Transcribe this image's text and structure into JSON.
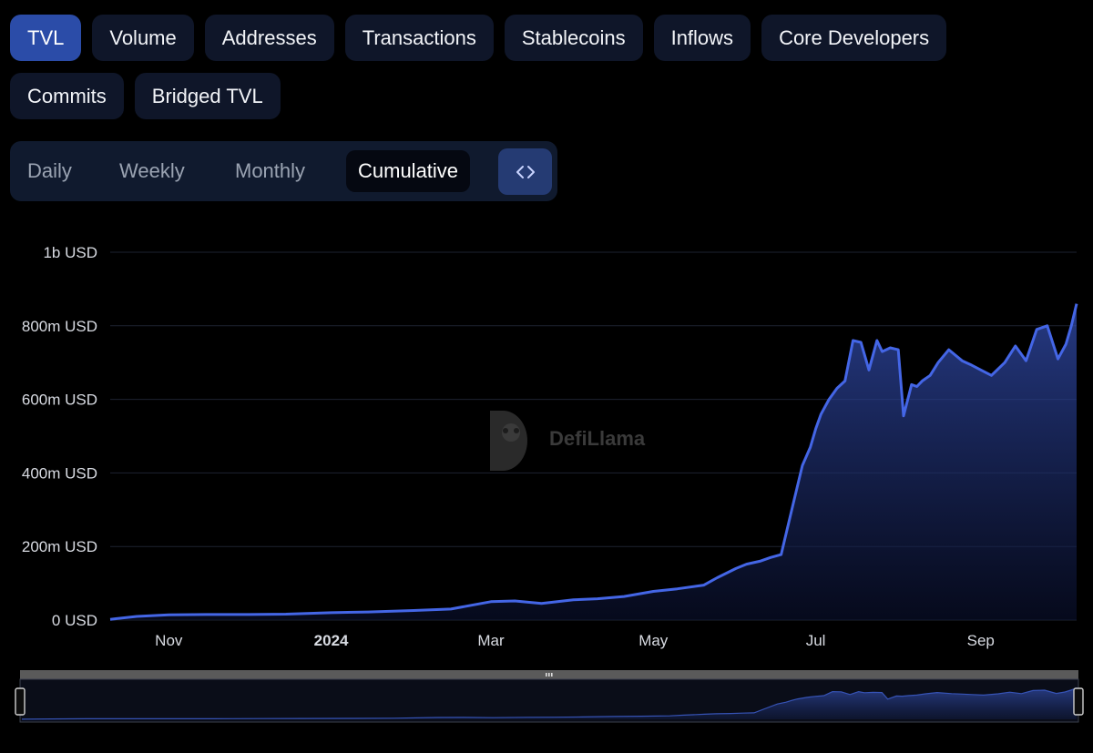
{
  "metric_tabs": [
    "TVL",
    "Volume",
    "Addresses",
    "Transactions",
    "Stablecoins",
    "Inflows",
    "Core Developers",
    "Commits",
    "Bridged TVL"
  ],
  "active_metric": "TVL",
  "period_tabs": [
    "Daily",
    "Weekly",
    "Monthly",
    "Cumulative"
  ],
  "active_period": "Cumulative",
  "embed_icon": "code-icon",
  "watermark": "DefiLlama",
  "colors": {
    "accent": "#3f63e0",
    "active_tab": "#2b4ca8",
    "tab_bg": "#0f1629",
    "background": "#000000"
  },
  "chart_data": {
    "type": "area",
    "title": "",
    "xlabel": "",
    "ylabel": "",
    "y_unit": "USD",
    "yticks": [
      "0 USD",
      "200m USD",
      "400m USD",
      "600m USD",
      "800m USD",
      "1b USD"
    ],
    "ylim": [
      0,
      1000
    ],
    "xticks": [
      {
        "label": "Nov",
        "date": "2023-11-01",
        "bold": false
      },
      {
        "label": "2024",
        "date": "2024-01-01",
        "bold": true
      },
      {
        "label": "Mar",
        "date": "2024-03-01",
        "bold": false
      },
      {
        "label": "May",
        "date": "2024-05-01",
        "bold": false
      },
      {
        "label": "Jul",
        "date": "2024-07-01",
        "bold": false
      },
      {
        "label": "Sep",
        "date": "2024-09-01",
        "bold": false
      }
    ],
    "xlim": [
      "2023-10-10",
      "2024-10-07"
    ],
    "grid": true,
    "legend": "none",
    "series": [
      {
        "values_unit": "million USD",
        "x": [
          "2023-10-10",
          "2023-10-20",
          "2023-11-01",
          "2023-11-15",
          "2023-12-01",
          "2023-12-15",
          "2024-01-01",
          "2024-01-15",
          "2024-02-01",
          "2024-02-15",
          "2024-03-01",
          "2024-03-10",
          "2024-03-20",
          "2024-04-01",
          "2024-04-10",
          "2024-04-20",
          "2024-05-01",
          "2024-05-10",
          "2024-05-20",
          "2024-05-25",
          "2024-06-01",
          "2024-06-05",
          "2024-06-10",
          "2024-06-14",
          "2024-06-18",
          "2024-06-22",
          "2024-06-26",
          "2024-06-29",
          "2024-07-01",
          "2024-07-03",
          "2024-07-06",
          "2024-07-09",
          "2024-07-12",
          "2024-07-15",
          "2024-07-18",
          "2024-07-21",
          "2024-07-24",
          "2024-07-26",
          "2024-07-29",
          "2024-08-01",
          "2024-08-03",
          "2024-08-06",
          "2024-08-08",
          "2024-08-10",
          "2024-08-13",
          "2024-08-16",
          "2024-08-20",
          "2024-08-25",
          "2024-08-28",
          "2024-09-01",
          "2024-09-05",
          "2024-09-10",
          "2024-09-14",
          "2024-09-18",
          "2024-09-22",
          "2024-09-26",
          "2024-09-30",
          "2024-10-03",
          "2024-10-05",
          "2024-10-07"
        ],
        "values": [
          2,
          10,
          14,
          15,
          15,
          16,
          20,
          22,
          26,
          30,
          50,
          52,
          45,
          55,
          58,
          64,
          78,
          85,
          95,
          115,
          140,
          152,
          160,
          170,
          178,
          300,
          420,
          470,
          520,
          560,
          600,
          630,
          650,
          760,
          755,
          680,
          760,
          730,
          740,
          735,
          555,
          640,
          635,
          650,
          665,
          700,
          735,
          705,
          695,
          680,
          665,
          700,
          745,
          705,
          790,
          800,
          710,
          750,
          800,
          860
        ]
      }
    ]
  }
}
